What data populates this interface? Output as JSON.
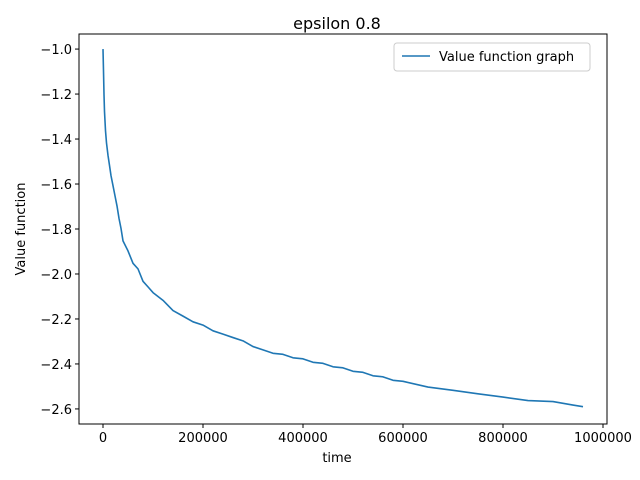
{
  "chart_data": {
    "type": "line",
    "title": "epsilon 0.8",
    "xlabel": "time",
    "ylabel": "Value function",
    "xlim": [
      -48000,
      1008000
    ],
    "ylim": [
      -2.667,
      -0.933
    ],
    "xticks": [
      0,
      200000,
      400000,
      600000,
      800000,
      1000000
    ],
    "xtick_labels": [
      "0",
      "200000",
      "400000",
      "600000",
      "800000",
      "1000000"
    ],
    "yticks": [
      -1.0,
      -1.2,
      -1.4,
      -1.6,
      -1.8,
      -2.0,
      -2.2,
      -2.4,
      -2.6
    ],
    "ytick_labels": [
      "−1.0",
      "−1.2",
      "−1.4",
      "−1.6",
      "−1.8",
      "−2.0",
      "−2.2",
      "−2.4",
      "−2.6"
    ],
    "grid": false,
    "legend_position": "top-right",
    "series": [
      {
        "name": "Value function graph",
        "color": "#1f77b4",
        "x": [
          0,
          1000,
          2000,
          3000,
          5000,
          7000,
          10000,
          13000,
          16000,
          20000,
          24000,
          28000,
          32000,
          36000,
          40000,
          50000,
          60000,
          70000,
          80000,
          90000,
          100000,
          120000,
          140000,
          160000,
          180000,
          200000,
          220000,
          240000,
          260000,
          280000,
          300000,
          320000,
          340000,
          360000,
          380000,
          400000,
          420000,
          440000,
          460000,
          480000,
          500000,
          520000,
          540000,
          560000,
          580000,
          600000,
          650000,
          700000,
          750000,
          800000,
          850000,
          900000,
          940000,
          960000
        ],
        "y": [
          -1.0,
          -1.1,
          -1.2,
          -1.28,
          -1.36,
          -1.42,
          -1.47,
          -1.52,
          -1.56,
          -1.61,
          -1.65,
          -1.7,
          -1.75,
          -1.8,
          -1.85,
          -1.9,
          -1.95,
          -1.98,
          -2.03,
          -2.06,
          -2.08,
          -2.12,
          -2.16,
          -2.19,
          -2.21,
          -2.23,
          -2.25,
          -2.27,
          -2.28,
          -2.3,
          -2.32,
          -2.34,
          -2.35,
          -2.36,
          -2.37,
          -2.38,
          -2.39,
          -2.4,
          -2.41,
          -2.42,
          -2.43,
          -2.44,
          -2.45,
          -2.46,
          -2.47,
          -2.48,
          -2.5,
          -2.52,
          -2.53,
          -2.55,
          -2.56,
          -2.57,
          -2.58,
          -2.59
        ]
      }
    ]
  }
}
